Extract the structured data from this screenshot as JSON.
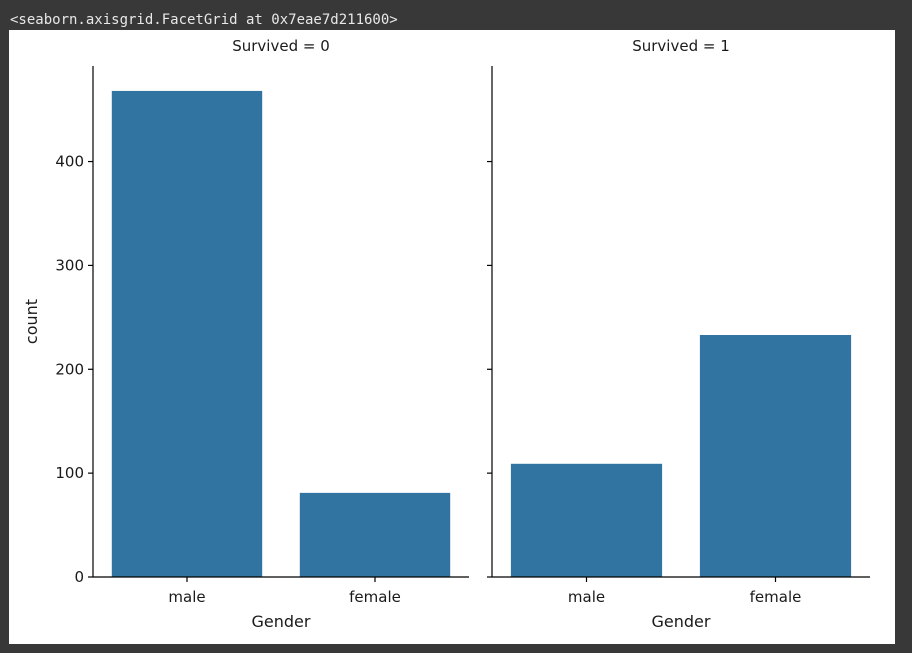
{
  "output_text": "<seaborn.axisgrid.FacetGrid at 0x7eae7d211600>",
  "colors": {
    "bar": "#3274a1",
    "axis": "#000000",
    "text": "#1a1a1a",
    "page_background": "#383838",
    "figure_background": "#ffffff"
  },
  "chart_data": [
    {
      "type": "bar",
      "title": "Survived = 0",
      "xlabel": "Gender",
      "ylabel": "count",
      "categories": [
        "male",
        "female"
      ],
      "values": [
        468,
        81
      ],
      "ylim": [
        0,
        492
      ],
      "yticks": [
        0,
        100,
        200,
        300,
        400
      ],
      "grid": false,
      "legend": "none"
    },
    {
      "type": "bar",
      "title": "Survived = 1",
      "xlabel": "Gender",
      "ylabel": "",
      "categories": [
        "male",
        "female"
      ],
      "values": [
        109,
        233
      ],
      "ylim": [
        0,
        492
      ],
      "yticks": [
        0,
        100,
        200,
        300,
        400
      ],
      "grid": false,
      "legend": "none"
    }
  ]
}
